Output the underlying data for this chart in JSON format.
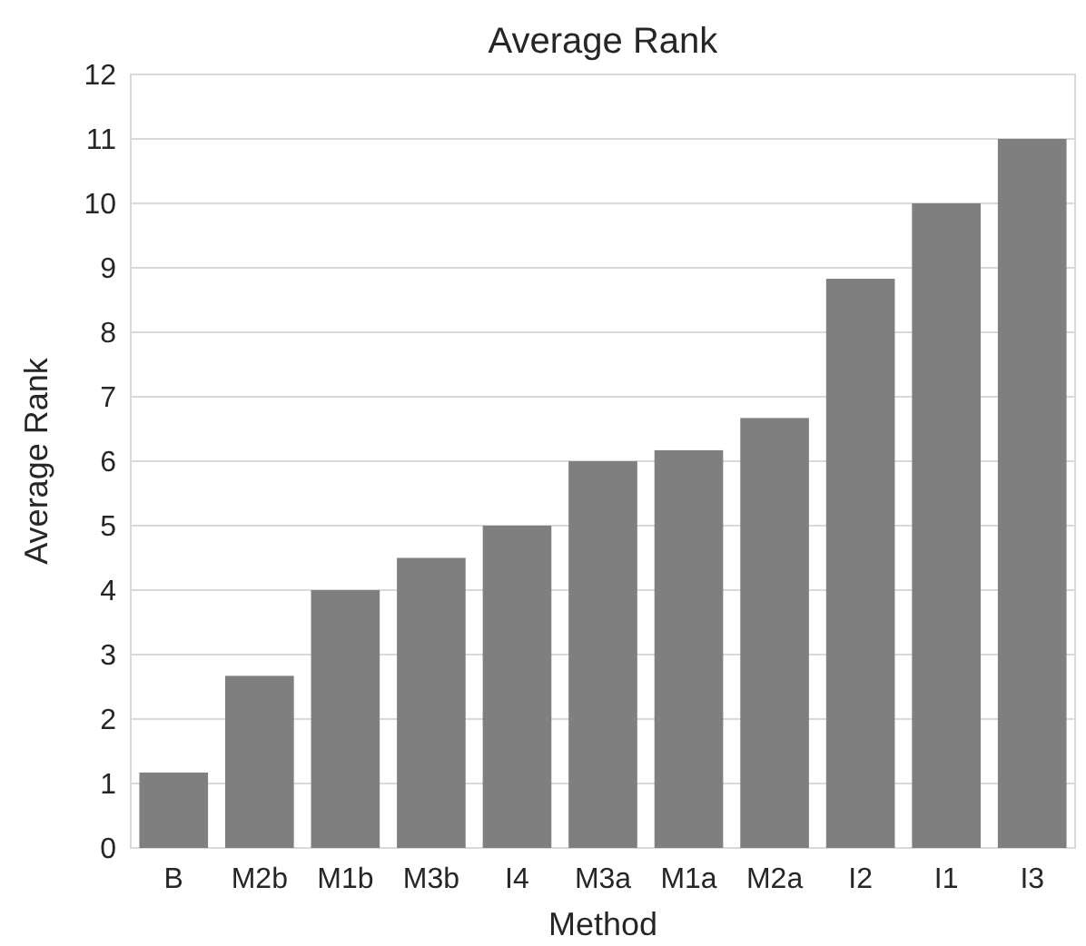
{
  "chart_data": {
    "type": "bar",
    "title": "Average Rank",
    "xlabel": "Method",
    "ylabel": "Average Rank",
    "categories": [
      "B",
      "M2b",
      "M1b",
      "M3b",
      "I4",
      "M3a",
      "M1a",
      "M2a",
      "I2",
      "I1",
      "I3"
    ],
    "values": [
      1.17,
      2.67,
      4.0,
      4.5,
      5.0,
      6.0,
      6.17,
      6.67,
      8.83,
      10.0,
      11.0
    ],
    "color": "#7f7f7f",
    "ylim": [
      0,
      12
    ],
    "yticks": [
      0,
      1,
      2,
      3,
      4,
      5,
      6,
      7,
      8,
      9,
      10,
      11,
      12
    ],
    "grid": "y"
  }
}
